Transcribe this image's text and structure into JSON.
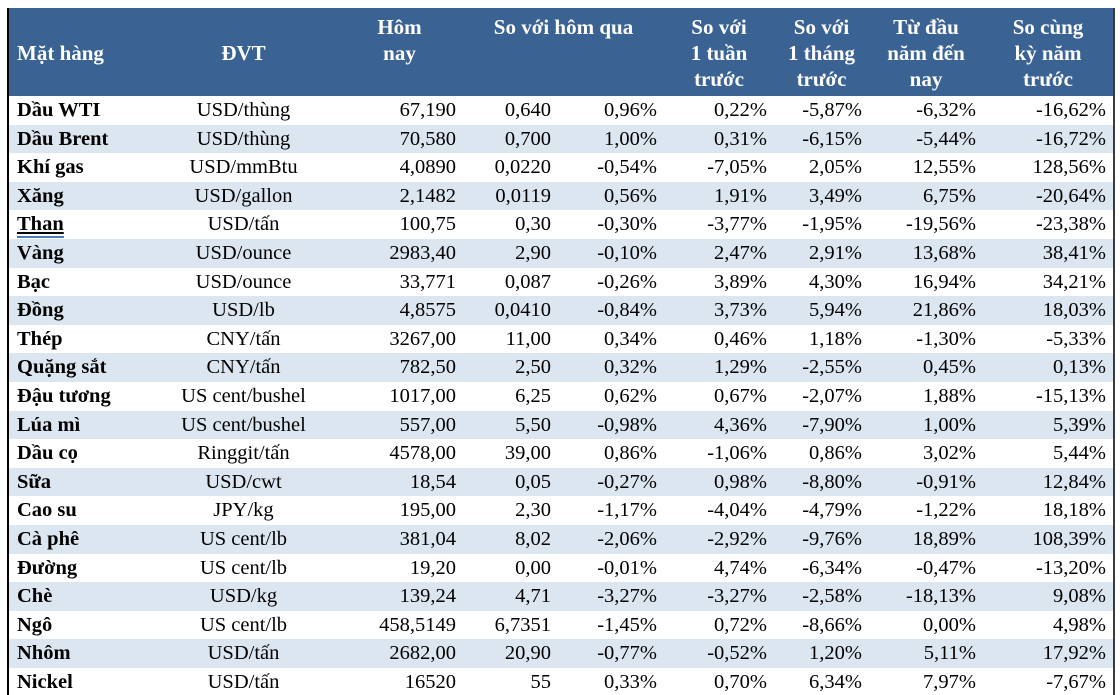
{
  "colors": {
    "header_bg": "#3A6292",
    "header_text": "#FFFFFF",
    "row_alt": "#DCE6F1",
    "row_bg": "#FFFFFF",
    "text": "#000000",
    "border": "#000000",
    "underline_accent": "#4A7EBB"
  },
  "table": {
    "columns": {
      "item": "Mặt hàng",
      "unit": "ĐVT",
      "today": "Hôm\nnay",
      "vs_yesterday": "So với hôm qua",
      "vs_week": "So với\n1 tuần\ntrước",
      "vs_month": "So với\n1 tháng\ntrước",
      "ytd": "Từ đầu\nnăm đến\nnay",
      "vs_year": "So cùng\nkỳ năm\ntrước"
    },
    "row_keys": [
      "item",
      "unit",
      "today",
      "change",
      "change_pct",
      "week_pct",
      "month_pct",
      "ytd_pct",
      "year_pct"
    ],
    "rows": [
      {
        "item": "Dầu WTI",
        "unit": "USD/thùng",
        "today": "67,190",
        "change": "0,640",
        "change_pct": "0,96%",
        "week_pct": "0,22%",
        "month_pct": "-5,87%",
        "ytd_pct": "-6,32%",
        "year_pct": "-16,62%",
        "underline": false
      },
      {
        "item": "Dầu Brent",
        "unit": "USD/thùng",
        "today": "70,580",
        "change": "0,700",
        "change_pct": "1,00%",
        "week_pct": "0,31%",
        "month_pct": "-6,15%",
        "ytd_pct": "-5,44%",
        "year_pct": "-16,72%",
        "underline": false
      },
      {
        "item": "Khí gas",
        "unit": "USD/mmBtu",
        "today": "4,0890",
        "change": "0,0220",
        "change_pct": "-0,54%",
        "week_pct": "-7,05%",
        "month_pct": "2,05%",
        "ytd_pct": "12,55%",
        "year_pct": "128,56%",
        "underline": false
      },
      {
        "item": "Xăng",
        "unit": "USD/gallon",
        "today": "2,1482",
        "change": "0,0119",
        "change_pct": "0,56%",
        "week_pct": "1,91%",
        "month_pct": "3,49%",
        "ytd_pct": "6,75%",
        "year_pct": "-20,64%",
        "underline": false
      },
      {
        "item": "Than",
        "unit": "USD/tấn",
        "today": "100,75",
        "change": "0,30",
        "change_pct": "-0,30%",
        "week_pct": "-3,77%",
        "month_pct": "-1,95%",
        "ytd_pct": "-19,56%",
        "year_pct": "-23,38%",
        "underline": true
      },
      {
        "item": "Vàng",
        "unit": "USD/ounce",
        "today": "2983,40",
        "change": "2,90",
        "change_pct": "-0,10%",
        "week_pct": "2,47%",
        "month_pct": "2,91%",
        "ytd_pct": "13,68%",
        "year_pct": "38,41%",
        "underline": false
      },
      {
        "item": "Bạc",
        "unit": "USD/ounce",
        "today": "33,771",
        "change": "0,087",
        "change_pct": "-0,26%",
        "week_pct": "3,89%",
        "month_pct": "4,30%",
        "ytd_pct": "16,94%",
        "year_pct": "34,21%",
        "underline": false
      },
      {
        "item": "Đồng",
        "unit": "USD/lb",
        "today": "4,8575",
        "change": "0,0410",
        "change_pct": "-0,84%",
        "week_pct": "3,73%",
        "month_pct": "5,94%",
        "ytd_pct": "21,86%",
        "year_pct": "18,03%",
        "underline": false
      },
      {
        "item": "Thép",
        "unit": "CNY/tấn",
        "today": "3267,00",
        "change": "11,00",
        "change_pct": "0,34%",
        "week_pct": "0,46%",
        "month_pct": "1,18%",
        "ytd_pct": "-1,30%",
        "year_pct": "-5,33%",
        "underline": false
      },
      {
        "item": "Quặng sắt",
        "unit": "CNY/tấn",
        "today": "782,50",
        "change": "2,50",
        "change_pct": "0,32%",
        "week_pct": "1,29%",
        "month_pct": "-2,55%",
        "ytd_pct": "0,45%",
        "year_pct": "0,13%",
        "underline": false
      },
      {
        "item": "Đậu tương",
        "unit": "US cent/bushel",
        "today": "1017,00",
        "change": "6,25",
        "change_pct": "0,62%",
        "week_pct": "0,67%",
        "month_pct": "-2,07%",
        "ytd_pct": "1,88%",
        "year_pct": "-15,13%",
        "underline": false
      },
      {
        "item": "Lúa mì",
        "unit": "US cent/bushel",
        "today": "557,00",
        "change": "5,50",
        "change_pct": "-0,98%",
        "week_pct": "4,36%",
        "month_pct": "-7,90%",
        "ytd_pct": "1,00%",
        "year_pct": "5,39%",
        "underline": false
      },
      {
        "item": "Dầu cọ",
        "unit": "Ringgit/tấn",
        "today": "4578,00",
        "change": "39,00",
        "change_pct": "0,86%",
        "week_pct": "-1,06%",
        "month_pct": "0,86%",
        "ytd_pct": "3,02%",
        "year_pct": "5,44%",
        "underline": false
      },
      {
        "item": "Sữa",
        "unit": "USD/cwt",
        "today": "18,54",
        "change": "0,05",
        "change_pct": "-0,27%",
        "week_pct": "0,98%",
        "month_pct": "-8,80%",
        "ytd_pct": "-0,91%",
        "year_pct": "12,84%",
        "underline": false
      },
      {
        "item": "Cao su",
        "unit": "JPY/kg",
        "today": "195,00",
        "change": "2,30",
        "change_pct": "-1,17%",
        "week_pct": "-4,04%",
        "month_pct": "-4,79%",
        "ytd_pct": "-1,22%",
        "year_pct": "18,18%",
        "underline": false
      },
      {
        "item": "Cà phê",
        "unit": "US cent/lb",
        "today": "381,04",
        "change": "8,02",
        "change_pct": "-2,06%",
        "week_pct": "-2,92%",
        "month_pct": "-9,76%",
        "ytd_pct": "18,89%",
        "year_pct": "108,39%",
        "underline": false
      },
      {
        "item": "Đường",
        "unit": "US cent/lb",
        "today": "19,20",
        "change": "0,00",
        "change_pct": "-0,01%",
        "week_pct": "4,74%",
        "month_pct": "-6,34%",
        "ytd_pct": "-0,47%",
        "year_pct": "-13,20%",
        "underline": false
      },
      {
        "item": "Chè",
        "unit": "USD/kg",
        "today": "139,24",
        "change": "4,71",
        "change_pct": "-3,27%",
        "week_pct": "-3,27%",
        "month_pct": "-2,58%",
        "ytd_pct": "-18,13%",
        "year_pct": "9,08%",
        "underline": false
      },
      {
        "item": "Ngô",
        "unit": "US cent/lb",
        "today": "458,5149",
        "change": "6,7351",
        "change_pct": "-1,45%",
        "week_pct": "0,72%",
        "month_pct": "-8,66%",
        "ytd_pct": "0,00%",
        "year_pct": "4,98%",
        "underline": false
      },
      {
        "item": "Nhôm",
        "unit": "USD/tấn",
        "today": "2682,00",
        "change": "20,90",
        "change_pct": "-0,77%",
        "week_pct": "-0,52%",
        "month_pct": "1,20%",
        "ytd_pct": "5,11%",
        "year_pct": "17,92%",
        "underline": false
      },
      {
        "item": "Nickel",
        "unit": "USD/tấn",
        "today": "16520",
        "change": "55",
        "change_pct": "0,33%",
        "week_pct": "0,70%",
        "month_pct": "6,34%",
        "ytd_pct": "7,97%",
        "year_pct": "-7,67%",
        "underline": false
      }
    ]
  }
}
